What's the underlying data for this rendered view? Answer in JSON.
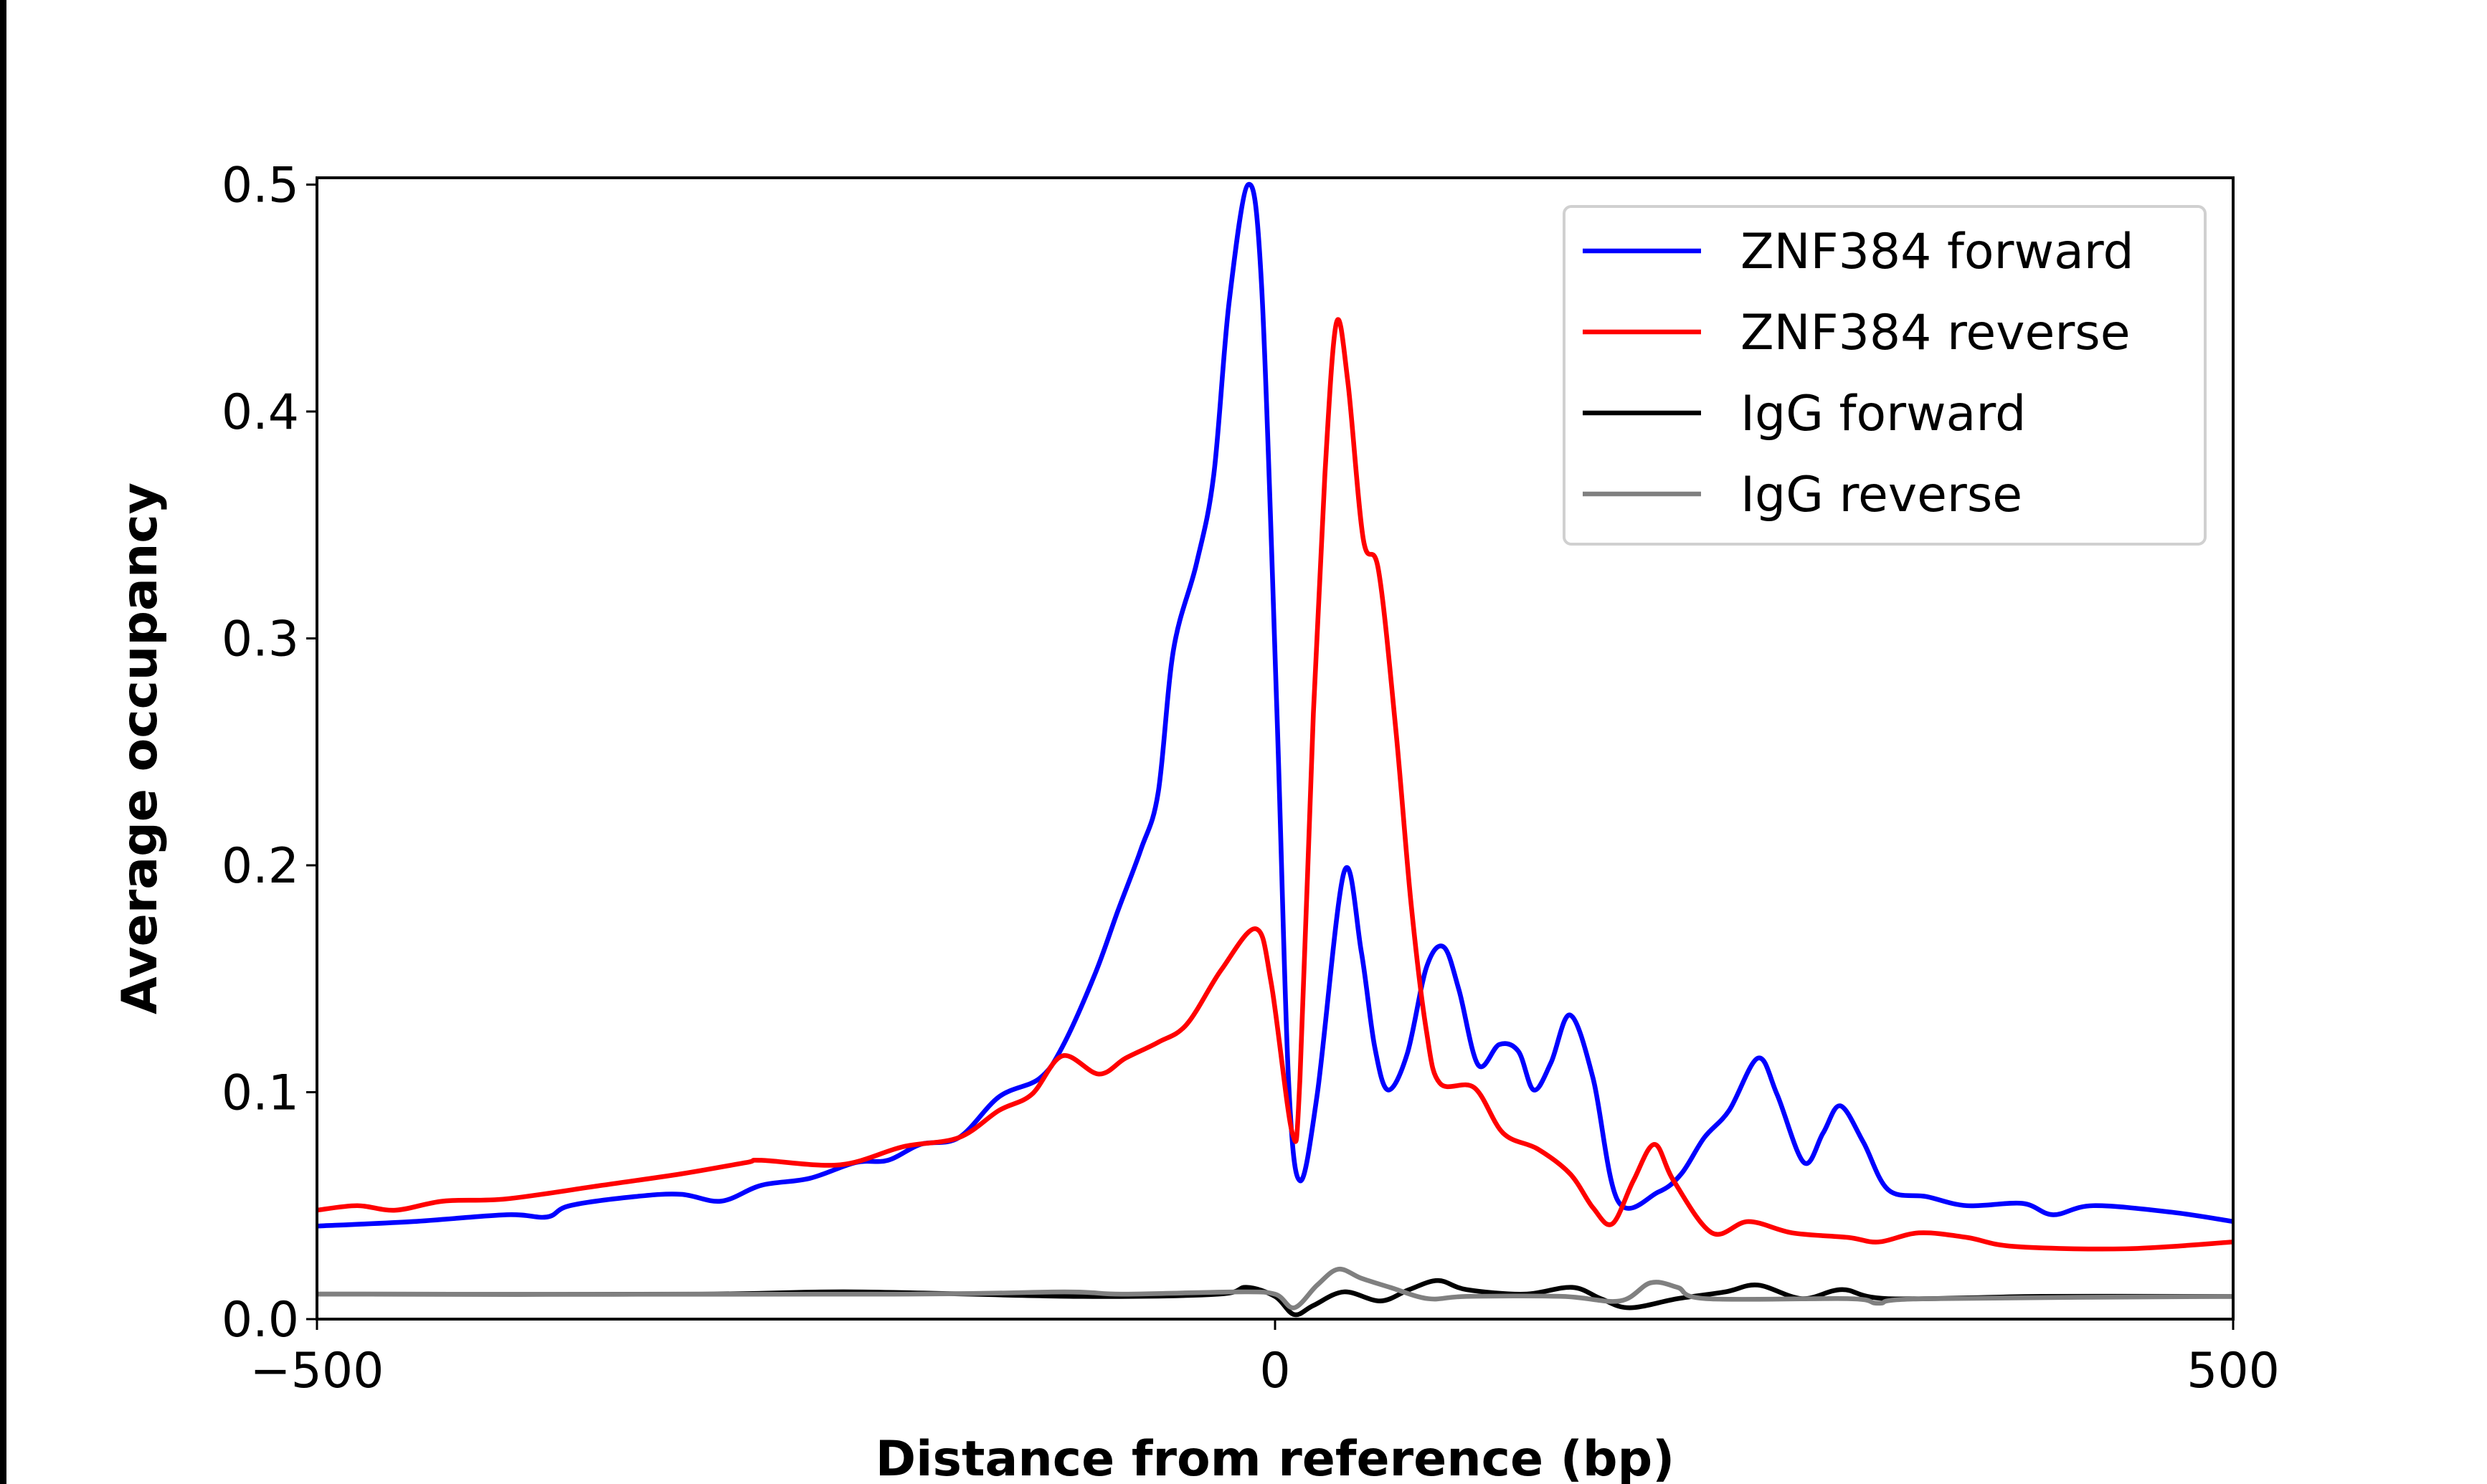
{
  "chart_data": {
    "type": "line",
    "title": "",
    "xlabel": "Distance from reference (bp)",
    "ylabel": "Average occupancy",
    "xlim": [
      -500,
      500
    ],
    "ylim": [
      0,
      0.503
    ],
    "xticks": [
      -500,
      0,
      500
    ],
    "xtick_labels": [
      "−500",
      "0",
      "500"
    ],
    "yticks": [
      0,
      0.1,
      0.2,
      0.3,
      0.4,
      0.5
    ],
    "ytick_labels": [
      "0.0",
      "0.1",
      "0.2",
      "0.3",
      "0.4",
      "0.5"
    ],
    "grid": false,
    "legend_position": "top-right",
    "series": [
      {
        "name": "ZNF384 forward",
        "color": "#0000ff",
        "x": [
          -500,
          -450,
          -401,
          -380,
          -368,
          -334,
          -310,
          -289,
          -268,
          -243,
          -219,
          -202,
          -185,
          -165,
          -144,
          -123,
          -111,
          -94,
          -82,
          -70,
          -61,
          -53,
          -41,
          -32,
          -24,
          -14,
          -7,
          1,
          7,
          13,
          22,
          36,
          45,
          52,
          59,
          69,
          79,
          88,
          96,
          106,
          117,
          127,
          135,
          144,
          154,
          166,
          179,
          200,
          212,
          224,
          237,
          252,
          262,
          276,
          286,
          295,
          307,
          320,
          340,
          361,
          390,
          406,
          427,
          469,
          500
        ],
        "y": [
          0.041,
          0.043,
          0.046,
          0.045,
          0.05,
          0.054,
          0.055,
          0.052,
          0.059,
          0.062,
          0.069,
          0.07,
          0.077,
          0.08,
          0.098,
          0.106,
          0.12,
          0.152,
          0.18,
          0.207,
          0.232,
          0.295,
          0.333,
          0.372,
          0.448,
          0.5,
          0.455,
          0.267,
          0.106,
          0.061,
          0.099,
          0.197,
          0.162,
          0.12,
          0.101,
          0.117,
          0.155,
          0.164,
          0.145,
          0.112,
          0.121,
          0.118,
          0.101,
          0.113,
          0.134,
          0.106,
          0.052,
          0.056,
          0.064,
          0.08,
          0.092,
          0.115,
          0.099,
          0.069,
          0.082,
          0.094,
          0.078,
          0.057,
          0.054,
          0.05,
          0.051,
          0.046,
          0.05,
          0.047,
          0.043
        ]
      },
      {
        "name": "ZNF384 reverse",
        "color": "#ff0000",
        "x": [
          -500,
          -479,
          -459,
          -434,
          -401,
          -351,
          -310,
          -276,
          -268,
          -227,
          -194,
          -165,
          -144,
          -127,
          -111,
          -92,
          -78,
          -61,
          -46,
          -28,
          -10,
          -2,
          9,
          13,
          20,
          26,
          32,
          38,
          46,
          54,
          63,
          71,
          79,
          86,
          104,
          119,
          137,
          154,
          166,
          176,
          187,
          198,
          208,
          228,
          247,
          270,
          299,
          315,
          336,
          361,
          386,
          444,
          500
        ],
        "y": [
          0.048,
          0.05,
          0.048,
          0.052,
          0.053,
          0.059,
          0.064,
          0.069,
          0.07,
          0.068,
          0.076,
          0.08,
          0.092,
          0.099,
          0.116,
          0.108,
          0.115,
          0.122,
          0.13,
          0.154,
          0.172,
          0.148,
          0.082,
          0.106,
          0.267,
          0.372,
          0.439,
          0.413,
          0.344,
          0.33,
          0.26,
          0.183,
          0.127,
          0.104,
          0.102,
          0.082,
          0.075,
          0.064,
          0.049,
          0.042,
          0.061,
          0.077,
          0.061,
          0.038,
          0.043,
          0.038,
          0.036,
          0.034,
          0.038,
          0.036,
          0.032,
          0.031,
          0.034
        ]
      },
      {
        "name": "IgG forward",
        "color": "#000000",
        "x": [
          -500,
          -300,
          -220,
          -100,
          -30,
          -15,
          0,
          10,
          20,
          36,
          55,
          70,
          85,
          100,
          130,
          155,
          170,
          185,
          210,
          235,
          252,
          275,
          296,
          320,
          400,
          500
        ],
        "y": [
          0.011,
          0.011,
          0.012,
          0.01,
          0.011,
          0.014,
          0.01,
          0.002,
          0.006,
          0.012,
          0.008,
          0.013,
          0.017,
          0.013,
          0.011,
          0.014,
          0.009,
          0.005,
          0.009,
          0.012,
          0.015,
          0.009,
          0.013,
          0.009,
          0.01,
          0.01
        ]
      },
      {
        "name": "IgG reverse",
        "color": "#808080",
        "x": [
          -500,
          -200,
          -110,
          -80,
          -20,
          0,
          10,
          22,
          33,
          45,
          60,
          80,
          100,
          150,
          180,
          196,
          210,
          225,
          300,
          315,
          340,
          500
        ],
        "y": [
          0.011,
          0.011,
          0.012,
          0.011,
          0.012,
          0.011,
          0.005,
          0.015,
          0.022,
          0.018,
          0.014,
          0.009,
          0.01,
          0.01,
          0.008,
          0.016,
          0.014,
          0.009,
          0.009,
          0.007,
          0.009,
          0.01
        ]
      }
    ]
  }
}
